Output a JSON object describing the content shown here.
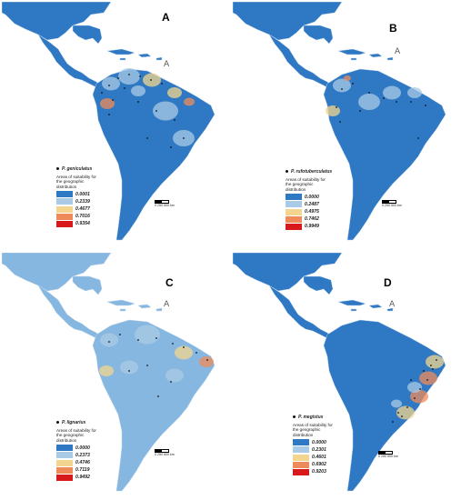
{
  "legend_title": "Areas of suitability for the geographic distribution",
  "scale_text": "0   250   500 km",
  "north_symbol": "A",
  "colors": [
    "#2f78c4",
    "#a9cbe6",
    "#f3d58f",
    "#ef8b5a",
    "#d7191c"
  ],
  "ocean": "#ffffff",
  "panels": [
    {
      "label": "A",
      "species": "P. geniculatus",
      "values": [
        "0.0001",
        "0.2339",
        "0.4677",
        "0.7016",
        "0.9354"
      ]
    },
    {
      "label": "B",
      "species": "P. rufotuberculatus",
      "values": [
        "0.0000",
        "0.2487",
        "0.4975",
        "0.7462",
        "0.9949"
      ]
    },
    {
      "label": "C",
      "species": "P. lignarius",
      "values": [
        "0.0000",
        "0.2373",
        "0.4746",
        "0.7119",
        "0.9492"
      ]
    },
    {
      "label": "D",
      "species": "P. megistus",
      "values": [
        "0.0000",
        "0.2301",
        "0.4601",
        "0.6902",
        "0.9203"
      ]
    }
  ]
}
